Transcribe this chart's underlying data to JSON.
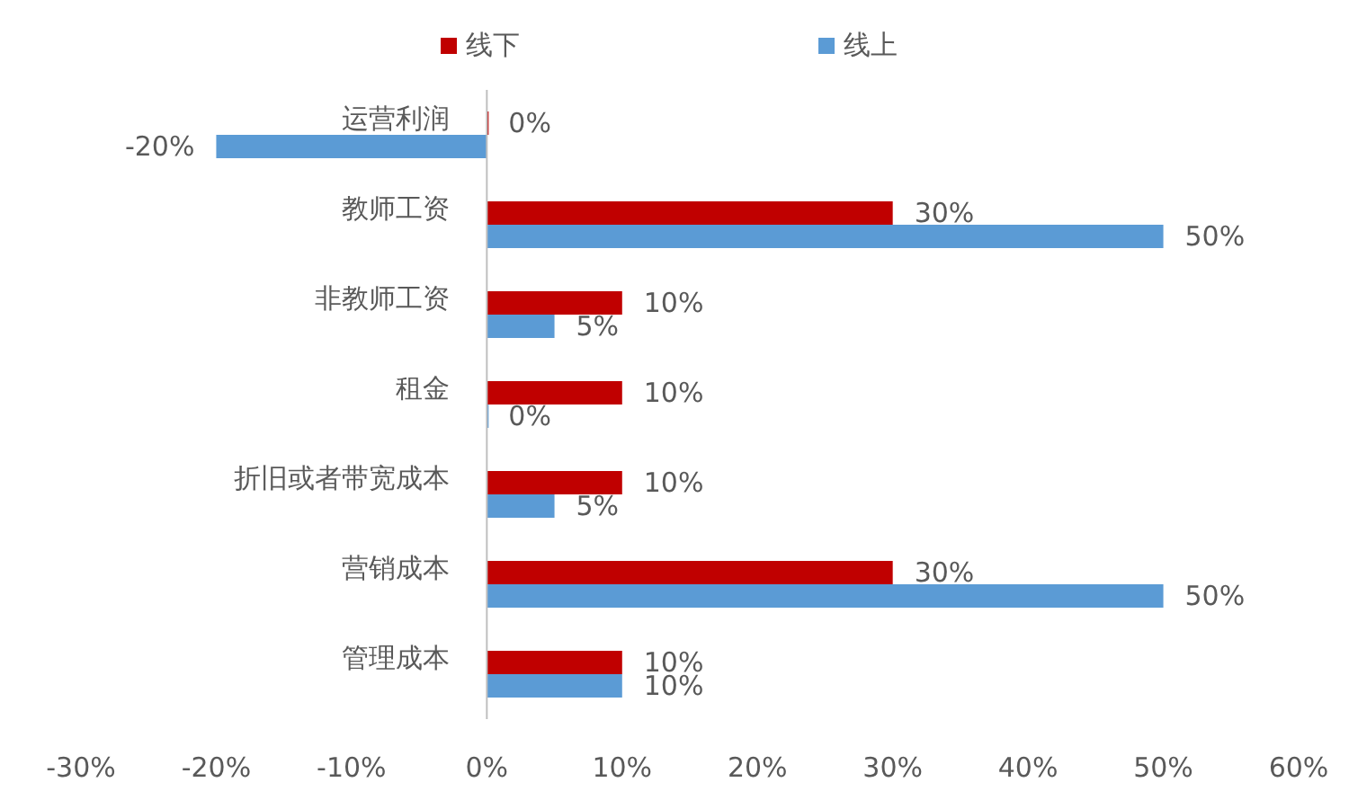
{
  "chart_data": {
    "type": "bar",
    "orientation": "horizontal",
    "legend": "top",
    "categories": [
      "运营利润",
      "教师工资",
      "非教师工资",
      "租金",
      "折旧或者带宽成本",
      "营销成本",
      "管理成本"
    ],
    "series": [
      {
        "name": "线下",
        "color": "#c00000",
        "values": [
          0,
          30,
          10,
          10,
          10,
          30,
          10
        ],
        "value_labels": [
          "0%",
          "30%",
          "10%",
          "10%",
          "10%",
          "30%",
          "10%"
        ]
      },
      {
        "name": "线上",
        "color": "#5b9bd5",
        "values": [
          -20,
          50,
          5,
          0,
          5,
          50,
          10
        ],
        "value_labels": [
          "-20%",
          "50%",
          "5%",
          "0%",
          "5%",
          "50%",
          "10%"
        ]
      }
    ],
    "xlim": [
      -30,
      60
    ],
    "xticks": [
      {
        "value": -30,
        "label": "-30%"
      },
      {
        "value": -20,
        "label": "-20%"
      },
      {
        "value": -10,
        "label": "-10%"
      },
      {
        "value": 0,
        "label": "0%"
      },
      {
        "value": 10,
        "label": "10%"
      },
      {
        "value": 20,
        "label": "20%"
      },
      {
        "value": 30,
        "label": "30%"
      },
      {
        "value": 40,
        "label": "40%"
      },
      {
        "value": 50,
        "label": "50%"
      },
      {
        "value": 60,
        "label": "60%"
      }
    ]
  }
}
